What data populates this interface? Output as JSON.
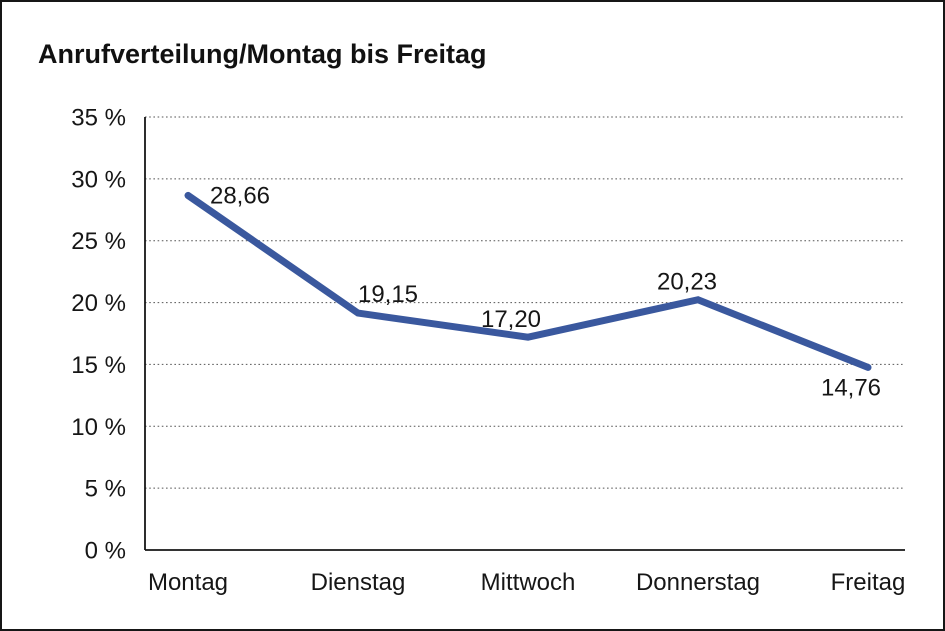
{
  "page": {
    "title": "Anrufverteilung/Montag bis Freitag"
  },
  "chart_data": {
    "type": "line",
    "title": "Anrufverteilung/Montag bis Freitag",
    "categories": [
      "Montag",
      "Dienstag",
      "Mittwoch",
      "Donnerstag",
      "Freitag"
    ],
    "values": [
      28.66,
      19.15,
      17.2,
      20.23,
      14.76
    ],
    "point_labels": [
      "28,66",
      "19,15",
      "17,20",
      "20,23",
      "14,76"
    ],
    "series": [
      {
        "name": "Anrufverteilung",
        "values": [
          28.66,
          19.15,
          17.2,
          20.23,
          14.76
        ]
      }
    ],
    "xlabel": "",
    "ylabel": "",
    "ylim": [
      0,
      35
    ],
    "yticks": [
      {
        "value": 35,
        "label": "35 %"
      },
      {
        "value": 30,
        "label": "30 %"
      },
      {
        "value": 25,
        "label": "25 %"
      },
      {
        "value": 20,
        "label": "20 %"
      },
      {
        "value": 15,
        "label": "15 %"
      },
      {
        "value": 10,
        "label": "10 %"
      },
      {
        "value": 5,
        "label": "5 %"
      },
      {
        "value": 0,
        "label": "0 %"
      }
    ],
    "grid": "horizontal-dotted",
    "legend": "none",
    "line_color": "#3A589E",
    "text_color": "#161616",
    "background_color": "#FFFFFF"
  }
}
